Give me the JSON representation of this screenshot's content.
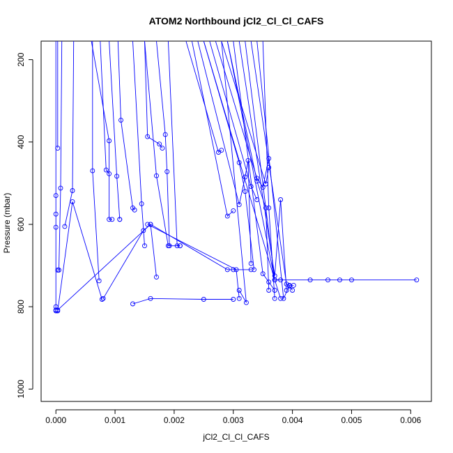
{
  "chart_data": {
    "type": "line",
    "title": "ATOM2 Northbound jCl2_Cl_Cl_CAFS",
    "xlabel": "jCl2_Cl_Cl_CAFS",
    "ylabel": "Pressure (mbar)",
    "xlim": [
      -0.00025,
      0.00635
    ],
    "ylim": [
      1030,
      155
    ],
    "y_reversed": true,
    "grid": false,
    "legend": "none",
    "x_ticks": [
      0.0,
      0.001,
      0.002,
      0.003,
      0.004,
      0.005,
      0.006
    ],
    "x_tick_labels": [
      "0.000",
      "0.001",
      "0.002",
      "0.003",
      "0.004",
      "0.005",
      "0.006"
    ],
    "y_ticks": [
      200,
      400,
      600,
      800,
      1000
    ],
    "y_tick_labels": [
      "200",
      "400",
      "600",
      "800",
      "1000"
    ],
    "series_color": "#0000ff",
    "marker": "open-circle",
    "series": [
      {
        "x": [
          0.0,
          0.0,
          0.0,
          0.0,
          0.0,
          0.0,
          0.0
        ],
        "y": [
          155,
          530,
          575,
          607,
          800,
          808,
          810
        ]
      },
      {
        "x": [
          3e-05,
          3e-05
        ],
        "y": [
          155,
          415
        ]
      },
      {
        "x": [
          0.0001,
          8e-05,
          5e-05,
          3e-05
        ],
        "y": [
          155,
          512,
          711,
          711
        ]
      },
      {
        "x": [
          0.0003,
          0.00028,
          0.00015
        ],
        "y": [
          155,
          518,
          605
        ]
      },
      {
        "x": [
          0.00062,
          0.00062,
          0.00073
        ],
        "y": [
          155,
          470,
          737
        ]
      },
      {
        "x": [
          0.0006,
          0.0009,
          0.0009,
          0.00095
        ],
        "y": [
          155,
          397,
          588,
          588
        ]
      },
      {
        "x": [
          0.00075,
          0.00085,
          0.0009
        ],
        "y": [
          155,
          468,
          477
        ]
      },
      {
        "x": [
          0.0009,
          0.00103,
          0.00108,
          0.00108
        ],
        "y": [
          155,
          483,
          588,
          588
        ]
      },
      {
        "x": [
          0.00105,
          0.0011,
          0.0013,
          0.00133
        ],
        "y": [
          155,
          347,
          560,
          565
        ]
      },
      {
        "x": [
          0.0013,
          0.00145,
          0.0015
        ],
        "y": [
          155,
          550,
          652
        ]
      },
      {
        "x": [
          0.0015,
          0.00155,
          0.00175,
          0.0018
        ],
        "y": [
          155,
          387,
          405,
          415
        ]
      },
      {
        "x": [
          0.0015,
          0.0017,
          0.0019,
          0.0021
        ],
        "y": [
          155,
          482,
          652,
          652
        ]
      },
      {
        "x": [
          0.0017,
          0.00185,
          0.00188,
          0.00192
        ],
        "y": [
          155,
          382,
          472,
          652
        ]
      },
      {
        "x": [
          0.0019,
          0.00205,
          0.0021
        ],
        "y": [
          155,
          652,
          652
        ]
      },
      {
        "x": [
          3e-05,
          0.00028,
          0.00078
        ],
        "y": [
          810,
          545,
          782
        ]
      },
      {
        "x": [
          0.0008,
          0.00148,
          0.0016
        ],
        "y": [
          780,
          615,
          600
        ]
      },
      {
        "x": [
          3e-05,
          0.0016,
          0.0017
        ],
        "y": [
          808,
          600,
          728
        ]
      },
      {
        "x": [
          0.0013,
          0.0016,
          0.0025,
          0.003
        ],
        "y": [
          793,
          780,
          782,
          782
        ]
      },
      {
        "x": [
          0.0016,
          0.0029,
          0.003,
          0.0033
        ],
        "y": [
          600,
          710,
          710,
          710
        ]
      },
      {
        "x": [
          0.00155,
          0.00305,
          0.0031
        ],
        "y": [
          600,
          710,
          780
        ]
      },
      {
        "x": [
          0.0022,
          0.00275,
          0.0028
        ],
        "y": [
          155,
          425,
          420
        ]
      },
      {
        "x": [
          0.0023,
          0.0029,
          0.003
        ],
        "y": [
          155,
          580,
          567
        ]
      },
      {
        "x": [
          0.0024,
          0.0031,
          0.0032,
          0.00325,
          0.0033
        ],
        "y": [
          155,
          552,
          485,
          445,
          695
        ]
      },
      {
        "x": [
          0.0025,
          0.0031,
          0.0032,
          0.00335
        ],
        "y": [
          155,
          450,
          520,
          710
        ]
      },
      {
        "x": [
          0.0026,
          0.0033,
          0.0034
        ],
        "y": [
          155,
          508,
          540
        ]
      },
      {
        "x": [
          0.0027,
          0.0034,
          0.0035,
          0.0036
        ],
        "y": [
          155,
          488,
          510,
          440
        ]
      },
      {
        "x": [
          0.0028,
          0.00355,
          0.0036
        ],
        "y": [
          155,
          502,
          462
        ]
      },
      {
        "x": [
          0.0029,
          0.0034,
          0.00355,
          0.0036
        ],
        "y": [
          155,
          495,
          560,
          760
        ]
      },
      {
        "x": [
          0.003,
          0.0035,
          0.0036,
          0.0037
        ],
        "y": [
          155,
          720,
          740,
          760
        ]
      },
      {
        "x": [
          0.0031,
          0.0037,
          0.0038,
          0.0039
        ],
        "y": [
          155,
          725,
          540,
          760
        ]
      },
      {
        "x": [
          0.0032,
          0.0037,
          0.0038
        ],
        "y": [
          155,
          735,
          780
        ]
      },
      {
        "x": [
          0.0033,
          0.0039,
          0.00395,
          0.004
        ],
        "y": [
          155,
          745,
          750,
          760
        ]
      },
      {
        "x": [
          0.0034,
          0.00385,
          0.00395,
          0.00402
        ],
        "y": [
          155,
          780,
          748,
          748
        ]
      },
      {
        "x": [
          0.0035,
          0.0036,
          0.0037
        ],
        "y": [
          155,
          560,
          780
        ]
      },
      {
        "x": [
          0.0028,
          0.00322,
          0.0031
        ],
        "y": [
          155,
          790,
          760
        ]
      },
      {
        "x": [
          0.0029,
          0.0037,
          0.0038
        ],
        "y": [
          155,
          735,
          735
        ]
      },
      {
        "x": [
          0.0025,
          0.0037,
          0.0043,
          0.0046,
          0.0048,
          0.005,
          0.0061
        ],
        "y": [
          155,
          735,
          735,
          735,
          735,
          735,
          735
        ]
      }
    ]
  }
}
